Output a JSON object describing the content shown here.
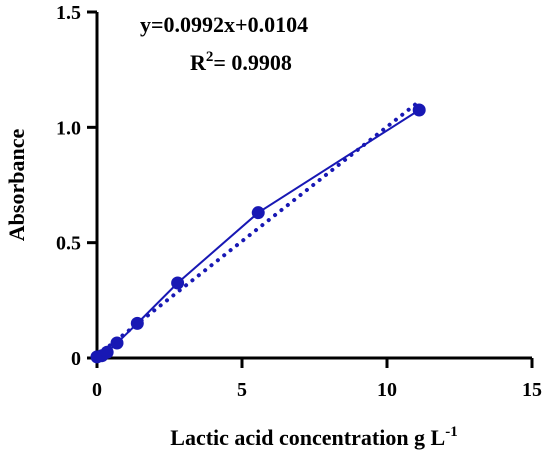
{
  "chart_data": {
    "type": "scatter",
    "xlabel": "Lactic acid concentration g L",
    "xlabel_superscript": "-1",
    "ylabel": "Absorbance",
    "xlim": [
      0,
      15
    ],
    "ylim": [
      0,
      1.5
    ],
    "x_ticks": [
      "0",
      "5",
      "10",
      "15"
    ],
    "y_ticks": [
      "0",
      "0.5",
      "1.0",
      "1.5"
    ],
    "x_tick_values": [
      0,
      5,
      10,
      15
    ],
    "y_tick_values": [
      0,
      0.5,
      1.0,
      1.5
    ],
    "grid": false,
    "series": [
      {
        "x": [
          0,
          0.17,
          0.35,
          0.69,
          1.39,
          2.78,
          5.56,
          11.11
        ],
        "y": [
          0.005,
          0.01,
          0.025,
          0.065,
          0.15,
          0.325,
          0.63,
          1.075
        ],
        "color": "#1818b4",
        "style": "solid line with circular markers"
      }
    ],
    "trendline": {
      "slope": 0.0992,
      "intercept": 0.0104,
      "x_range": [
        0,
        11.11
      ],
      "style": "dotted",
      "color": "#1818b4"
    },
    "annotations": {
      "equation": "y=0.0992x+0.0104",
      "r2_prefix": "R",
      "r2_exponent": "2",
      "r2_value": "= 0.9908"
    }
  }
}
